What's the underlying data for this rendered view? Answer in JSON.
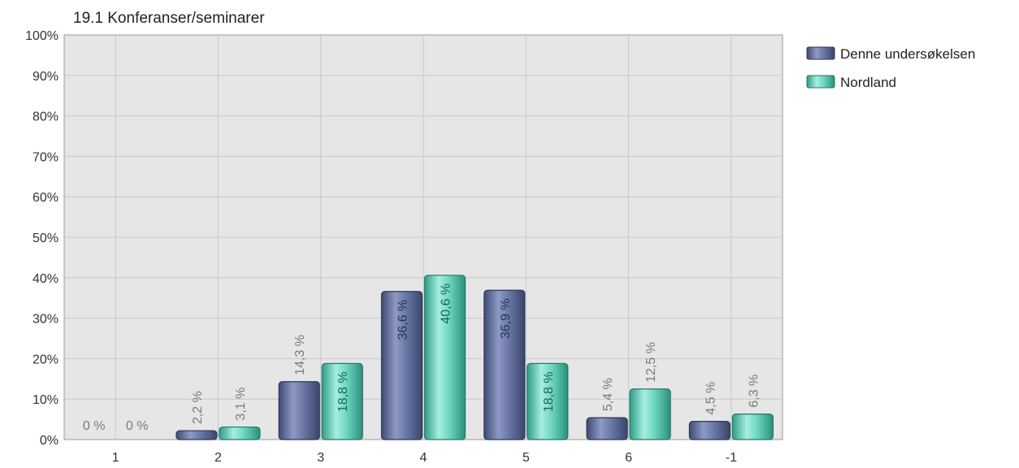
{
  "chart_data": {
    "type": "bar",
    "title": "19.1 Konferanser/seminarer",
    "xlabel": "",
    "ylabel": "",
    "categories": [
      "1",
      "2",
      "3",
      "4",
      "5",
      "6",
      "-1"
    ],
    "y_ticks": [
      "0%",
      "10%",
      "20%",
      "30%",
      "40%",
      "50%",
      "60%",
      "70%",
      "80%",
      "90%",
      "100%"
    ],
    "ylim": [
      0,
      100
    ],
    "grid": true,
    "legend_position": "top-right",
    "series": [
      {
        "name": "Denne undersøkelsen",
        "color": "#5d6b99",
        "values": [
          0,
          2.2,
          14.3,
          36.6,
          36.9,
          5.4,
          4.5
        ],
        "labels": [
          "0 %",
          "2,2 %",
          "14,3 %",
          "36,6 %",
          "36,9 %",
          "5,4 %",
          "4,5 %"
        ]
      },
      {
        "name": "Nordland",
        "color": "#5ec9b4",
        "values": [
          0,
          3.1,
          18.8,
          40.6,
          18.8,
          12.5,
          6.3
        ],
        "labels": [
          "0 %",
          "3,1 %",
          "18,8 %",
          "40,6 %",
          "18,8 %",
          "12,5 %",
          "6,3 %"
        ]
      }
    ]
  }
}
